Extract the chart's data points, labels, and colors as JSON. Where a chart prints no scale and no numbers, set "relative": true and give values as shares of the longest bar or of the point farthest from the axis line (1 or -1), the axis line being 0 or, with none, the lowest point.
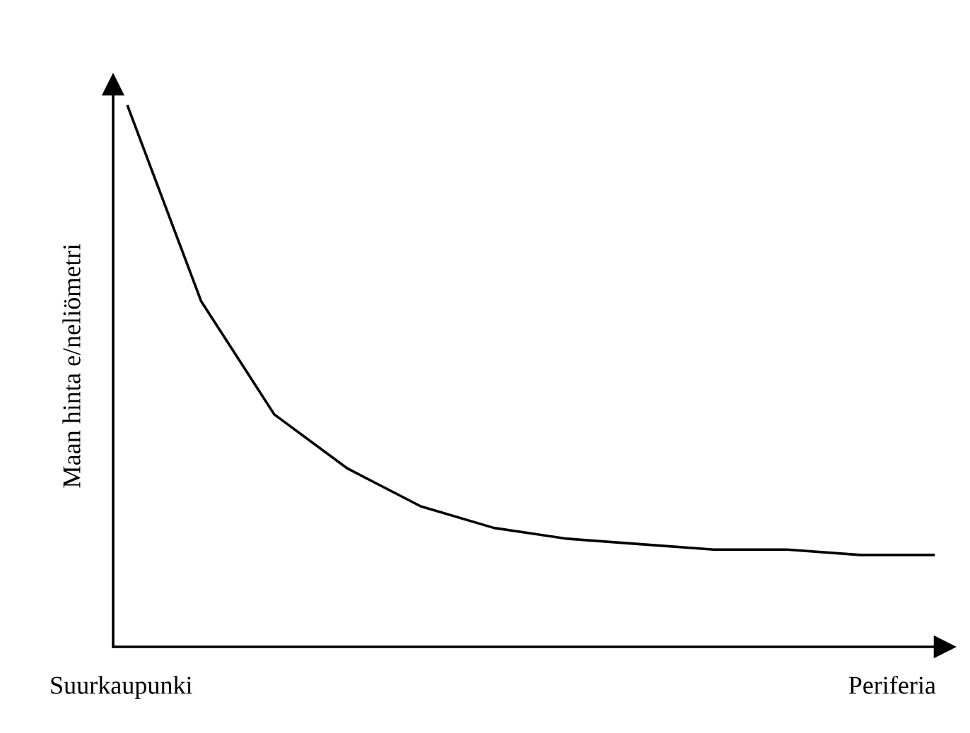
{
  "chart_data": {
    "type": "line",
    "relative": true,
    "ylabel": "Maan hinta e/neliömetri",
    "categories": [
      null,
      null,
      null,
      null,
      null,
      null,
      null,
      null,
      null,
      null,
      null,
      null
    ],
    "annotations": [
      "Suurkaupunki",
      "Periferia"
    ],
    "series": [
      {
        "color": "#000000",
        "values": [
          1,
          0.64,
          0.43,
          0.33,
          0.26,
          0.22,
          0.2,
          0.19,
          0.18,
          0.18,
          0.17,
          0.17
        ]
      }
    ],
    "grid": false,
    "legend": false,
    "marker": "none",
    "line_style": "solid"
  }
}
